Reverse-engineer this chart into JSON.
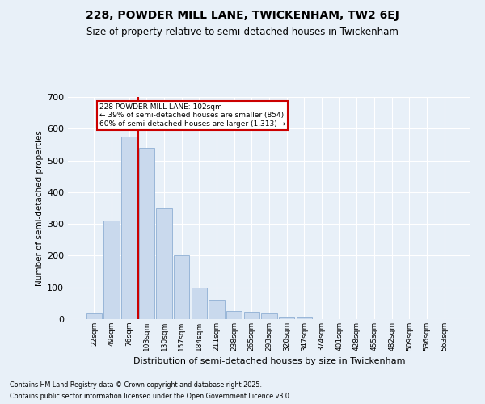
{
  "title1": "228, POWDER MILL LANE, TWICKENHAM, TW2 6EJ",
  "title2": "Size of property relative to semi-detached houses in Twickenham",
  "xlabel": "Distribution of semi-detached houses by size in Twickenham",
  "ylabel": "Number of semi-detached properties",
  "categories": [
    "22sqm",
    "49sqm",
    "76sqm",
    "103sqm",
    "130sqm",
    "157sqm",
    "184sqm",
    "211sqm",
    "238sqm",
    "265sqm",
    "293sqm",
    "320sqm",
    "347sqm",
    "374sqm",
    "401sqm",
    "428sqm",
    "455sqm",
    "482sqm",
    "509sqm",
    "536sqm",
    "563sqm"
  ],
  "values": [
    20,
    310,
    575,
    540,
    350,
    200,
    100,
    60,
    25,
    22,
    20,
    8,
    8,
    0,
    0,
    0,
    0,
    0,
    0,
    0,
    0
  ],
  "bar_color": "#c9d9ed",
  "bar_edge_color": "#8eafd4",
  "annotation_line1": "228 POWDER MILL LANE: 102sqm",
  "annotation_line2": "← 39% of semi-detached houses are smaller (854)",
  "annotation_line3": "60% of semi-detached houses are larger (1,313) →",
  "annotation_box_color": "#ffffff",
  "annotation_box_edge": "#cc0000",
  "property_line_color": "#cc0000",
  "ylim": [
    0,
    700
  ],
  "yticks": [
    0,
    100,
    200,
    300,
    400,
    500,
    600,
    700
  ],
  "footer1": "Contains HM Land Registry data © Crown copyright and database right 2025.",
  "footer2": "Contains public sector information licensed under the Open Government Licence v3.0.",
  "background_color": "#e8f0f8",
  "grid_color": "#ffffff",
  "title1_fontsize": 10,
  "title2_fontsize": 8.5
}
